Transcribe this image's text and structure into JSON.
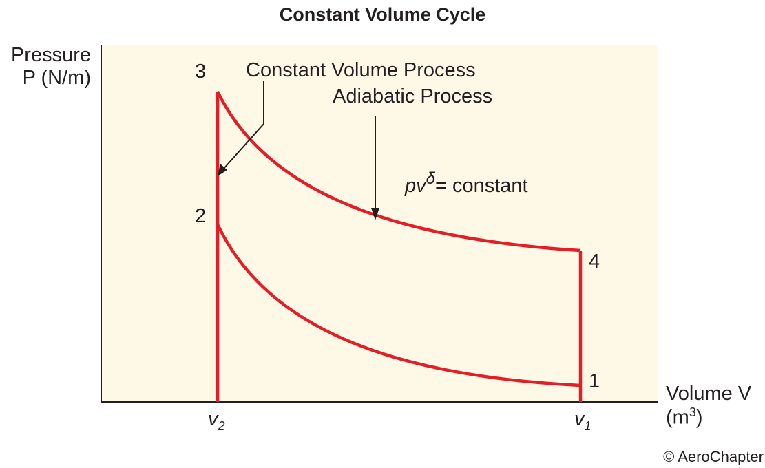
{
  "title": "Constant Volume Cycle",
  "y_axis": {
    "line1": "Pressure",
    "line2": "P (N/m)"
  },
  "x_axis": {
    "line1": "Volume V",
    "line2_prefix": "(m",
    "line2_sup": "3",
    "line2_suffix": ")"
  },
  "ticks": {
    "v2": "v",
    "v2_sub": "2",
    "v1": "v",
    "v1_sub": "1"
  },
  "points": [
    "1",
    "2",
    "3",
    "4"
  ],
  "annotations": {
    "constant_volume": "Constant Volume Process",
    "adiabatic": "Adiabatic Process",
    "equation_pv": "pv",
    "equation_exp": "δ",
    "equation_rest": "= constant"
  },
  "copyright": "© AeroChapter",
  "colors": {
    "background": "#fdf9e6",
    "curve": "#e31e26",
    "axis": "#231f20"
  }
}
